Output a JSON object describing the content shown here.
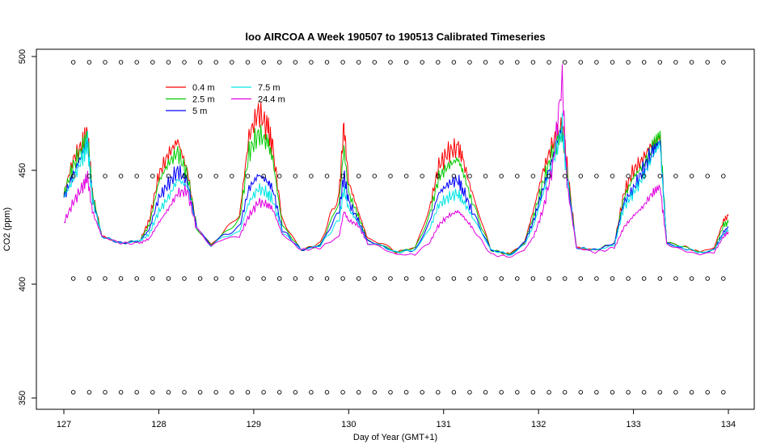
{
  "chart_data": {
    "type": "line",
    "title": "loo AIRCOA A  Week 190507 to 190513  Calibrated Timeseries",
    "xlabel": "Day of Year (GMT+1)",
    "ylabel": "CO2 (ppm)",
    "xlim": [
      127,
      134
    ],
    "ylim": [
      350,
      500
    ],
    "x_ticks": [
      "127",
      "128",
      "129",
      "130",
      "131",
      "132",
      "133",
      "134"
    ],
    "y_ticks": [
      "350",
      "400",
      "450",
      "500"
    ],
    "legend_position": "top-left",
    "series": [
      {
        "name": "0.4 m",
        "color": "#ff0000",
        "x": [
          127.0,
          127.1,
          127.2,
          127.25,
          127.3,
          127.4,
          127.6,
          127.8,
          127.9,
          128.0,
          128.1,
          128.2,
          128.3,
          128.4,
          128.55,
          128.7,
          128.85,
          128.95,
          129.05,
          129.15,
          129.2,
          129.3,
          129.5,
          129.7,
          129.9,
          129.95,
          130.0,
          130.1,
          130.2,
          130.35,
          130.5,
          130.7,
          130.85,
          130.95,
          131.05,
          131.15,
          131.2,
          131.3,
          131.5,
          131.7,
          131.85,
          131.95,
          132.05,
          132.15,
          132.25,
          132.3,
          132.4,
          132.6,
          132.8,
          132.9,
          133.0,
          133.1,
          133.2,
          133.28,
          133.35,
          133.5,
          133.7,
          133.85,
          133.95,
          134.0
        ],
        "y": [
          440,
          455,
          462,
          466,
          440,
          421,
          418,
          419,
          428,
          448,
          457,
          463,
          450,
          425,
          417,
          424,
          430,
          465,
          476,
          468,
          460,
          428,
          415,
          418,
          440,
          470,
          445,
          432,
          420,
          418,
          414,
          416,
          433,
          452,
          458,
          460,
          455,
          440,
          415,
          413,
          418,
          433,
          450,
          462,
          469,
          452,
          416,
          415,
          418,
          440,
          450,
          455,
          462,
          465,
          418,
          417,
          414,
          416,
          428,
          430
        ]
      },
      {
        "name": "2.5 m",
        "color": "#00cc00",
        "x": [
          127.0,
          127.1,
          127.2,
          127.25,
          127.3,
          127.4,
          127.6,
          127.8,
          127.9,
          128.0,
          128.1,
          128.2,
          128.3,
          128.4,
          128.55,
          128.7,
          128.85,
          128.95,
          129.05,
          129.15,
          129.2,
          129.3,
          129.5,
          129.7,
          129.9,
          129.95,
          130.0,
          130.1,
          130.2,
          130.35,
          130.5,
          130.7,
          130.85,
          130.95,
          131.05,
          131.15,
          131.2,
          131.3,
          131.5,
          131.7,
          131.85,
          131.95,
          132.05,
          132.15,
          132.25,
          132.3,
          132.4,
          132.6,
          132.8,
          132.9,
          133.0,
          133.1,
          133.2,
          133.28,
          133.35,
          133.5,
          133.7,
          133.85,
          133.95,
          134.0
        ],
        "y": [
          439,
          452,
          460,
          465,
          440,
          421,
          418,
          419,
          426,
          445,
          453,
          458,
          448,
          425,
          417,
          423,
          428,
          458,
          466,
          462,
          455,
          426,
          415,
          417,
          436,
          460,
          440,
          430,
          419,
          417,
          414,
          416,
          430,
          447,
          452,
          455,
          450,
          436,
          415,
          413,
          418,
          430,
          445,
          458,
          467,
          450,
          416,
          415,
          418,
          438,
          447,
          452,
          460,
          466,
          418,
          417,
          414,
          415,
          426,
          427
        ]
      },
      {
        "name": "5 m",
        "color": "#0000ff",
        "x": [
          127.0,
          127.1,
          127.2,
          127.25,
          127.3,
          127.4,
          127.6,
          127.8,
          127.9,
          128.0,
          128.1,
          128.2,
          128.3,
          128.4,
          128.55,
          128.7,
          128.85,
          128.95,
          129.05,
          129.15,
          129.2,
          129.3,
          129.5,
          129.7,
          129.9,
          129.95,
          130.0,
          130.1,
          130.2,
          130.35,
          130.5,
          130.7,
          130.85,
          130.95,
          131.05,
          131.15,
          131.2,
          131.3,
          131.5,
          131.7,
          131.85,
          131.95,
          132.05,
          132.15,
          132.25,
          132.3,
          132.4,
          132.6,
          132.8,
          132.9,
          133.0,
          133.1,
          133.2,
          133.28,
          133.35,
          133.5,
          133.7,
          133.85,
          133.95,
          134.0
        ],
        "y": [
          438,
          448,
          458,
          463,
          438,
          421,
          418,
          419,
          424,
          438,
          444,
          450,
          445,
          425,
          417,
          422,
          425,
          442,
          448,
          445,
          442,
          424,
          415,
          417,
          432,
          448,
          436,
          428,
          419,
          417,
          414,
          415,
          427,
          440,
          444,
          446,
          442,
          432,
          415,
          413,
          418,
          428,
          442,
          455,
          470,
          448,
          416,
          415,
          418,
          436,
          442,
          450,
          458,
          463,
          418,
          416,
          414,
          415,
          423,
          425
        ]
      },
      {
        "name": "7.5 m",
        "color": "#00e5e5",
        "x": [
          127.0,
          127.1,
          127.2,
          127.25,
          127.3,
          127.4,
          127.6,
          127.8,
          127.9,
          128.0,
          128.1,
          128.2,
          128.3,
          128.4,
          128.55,
          128.7,
          128.85,
          128.95,
          129.05,
          129.15,
          129.2,
          129.3,
          129.5,
          129.7,
          129.9,
          129.95,
          130.0,
          130.1,
          130.2,
          130.35,
          130.5,
          130.7,
          130.85,
          130.95,
          131.05,
          131.15,
          131.2,
          131.3,
          131.5,
          131.7,
          131.85,
          131.95,
          132.05,
          132.15,
          132.25,
          132.3,
          132.4,
          132.6,
          132.8,
          132.9,
          133.0,
          133.1,
          133.2,
          133.28,
          133.35,
          133.5,
          133.7,
          133.85,
          133.95,
          134.0
        ],
        "y": [
          438,
          446,
          456,
          462,
          437,
          421,
          418,
          419,
          422,
          432,
          438,
          446,
          443,
          424,
          417,
          421,
          423,
          436,
          442,
          440,
          437,
          423,
          415,
          417,
          428,
          442,
          433,
          427,
          418,
          417,
          414,
          415,
          424,
          435,
          438,
          440,
          437,
          430,
          415,
          413,
          417,
          426,
          440,
          453,
          469,
          446,
          416,
          415,
          417,
          434,
          440,
          447,
          456,
          462,
          418,
          416,
          414,
          415,
          422,
          424
        ]
      },
      {
        "name": "24.4 m",
        "color": "#e000e0",
        "x": [
          127.0,
          127.1,
          127.2,
          127.25,
          127.3,
          127.4,
          127.6,
          127.8,
          127.9,
          128.0,
          128.1,
          128.2,
          128.3,
          128.4,
          128.55,
          128.7,
          128.85,
          128.95,
          129.05,
          129.15,
          129.2,
          129.3,
          129.5,
          129.7,
          129.9,
          129.95,
          130.0,
          130.1,
          130.2,
          130.35,
          130.5,
          130.7,
          130.85,
          130.95,
          131.05,
          131.15,
          131.2,
          131.3,
          131.5,
          131.7,
          131.85,
          131.95,
          132.05,
          132.15,
          132.25,
          132.3,
          132.4,
          132.6,
          132.8,
          132.9,
          133.0,
          133.1,
          133.2,
          133.28,
          133.35,
          133.5,
          133.7,
          133.85,
          133.95,
          134.0
        ],
        "y": [
          427,
          436,
          443,
          447,
          432,
          421,
          418,
          418,
          420,
          427,
          433,
          440,
          441,
          424,
          417,
          420,
          421,
          430,
          436,
          435,
          433,
          422,
          415,
          416,
          421,
          432,
          428,
          426,
          418,
          416,
          413,
          413,
          418,
          426,
          430,
          432,
          430,
          425,
          413,
          412,
          415,
          421,
          433,
          452,
          490,
          444,
          416,
          414,
          416,
          425,
          430,
          434,
          440,
          443,
          418,
          415,
          413,
          414,
          421,
          423
        ]
      }
    ],
    "reference_markers": [
      {
        "level": 497.5,
        "step": 0.167
      },
      {
        "level": 447.5,
        "step": 0.167
      },
      {
        "level": 402.5,
        "step": 0.167
      },
      {
        "level": 352.5,
        "step": 0.167
      }
    ]
  }
}
